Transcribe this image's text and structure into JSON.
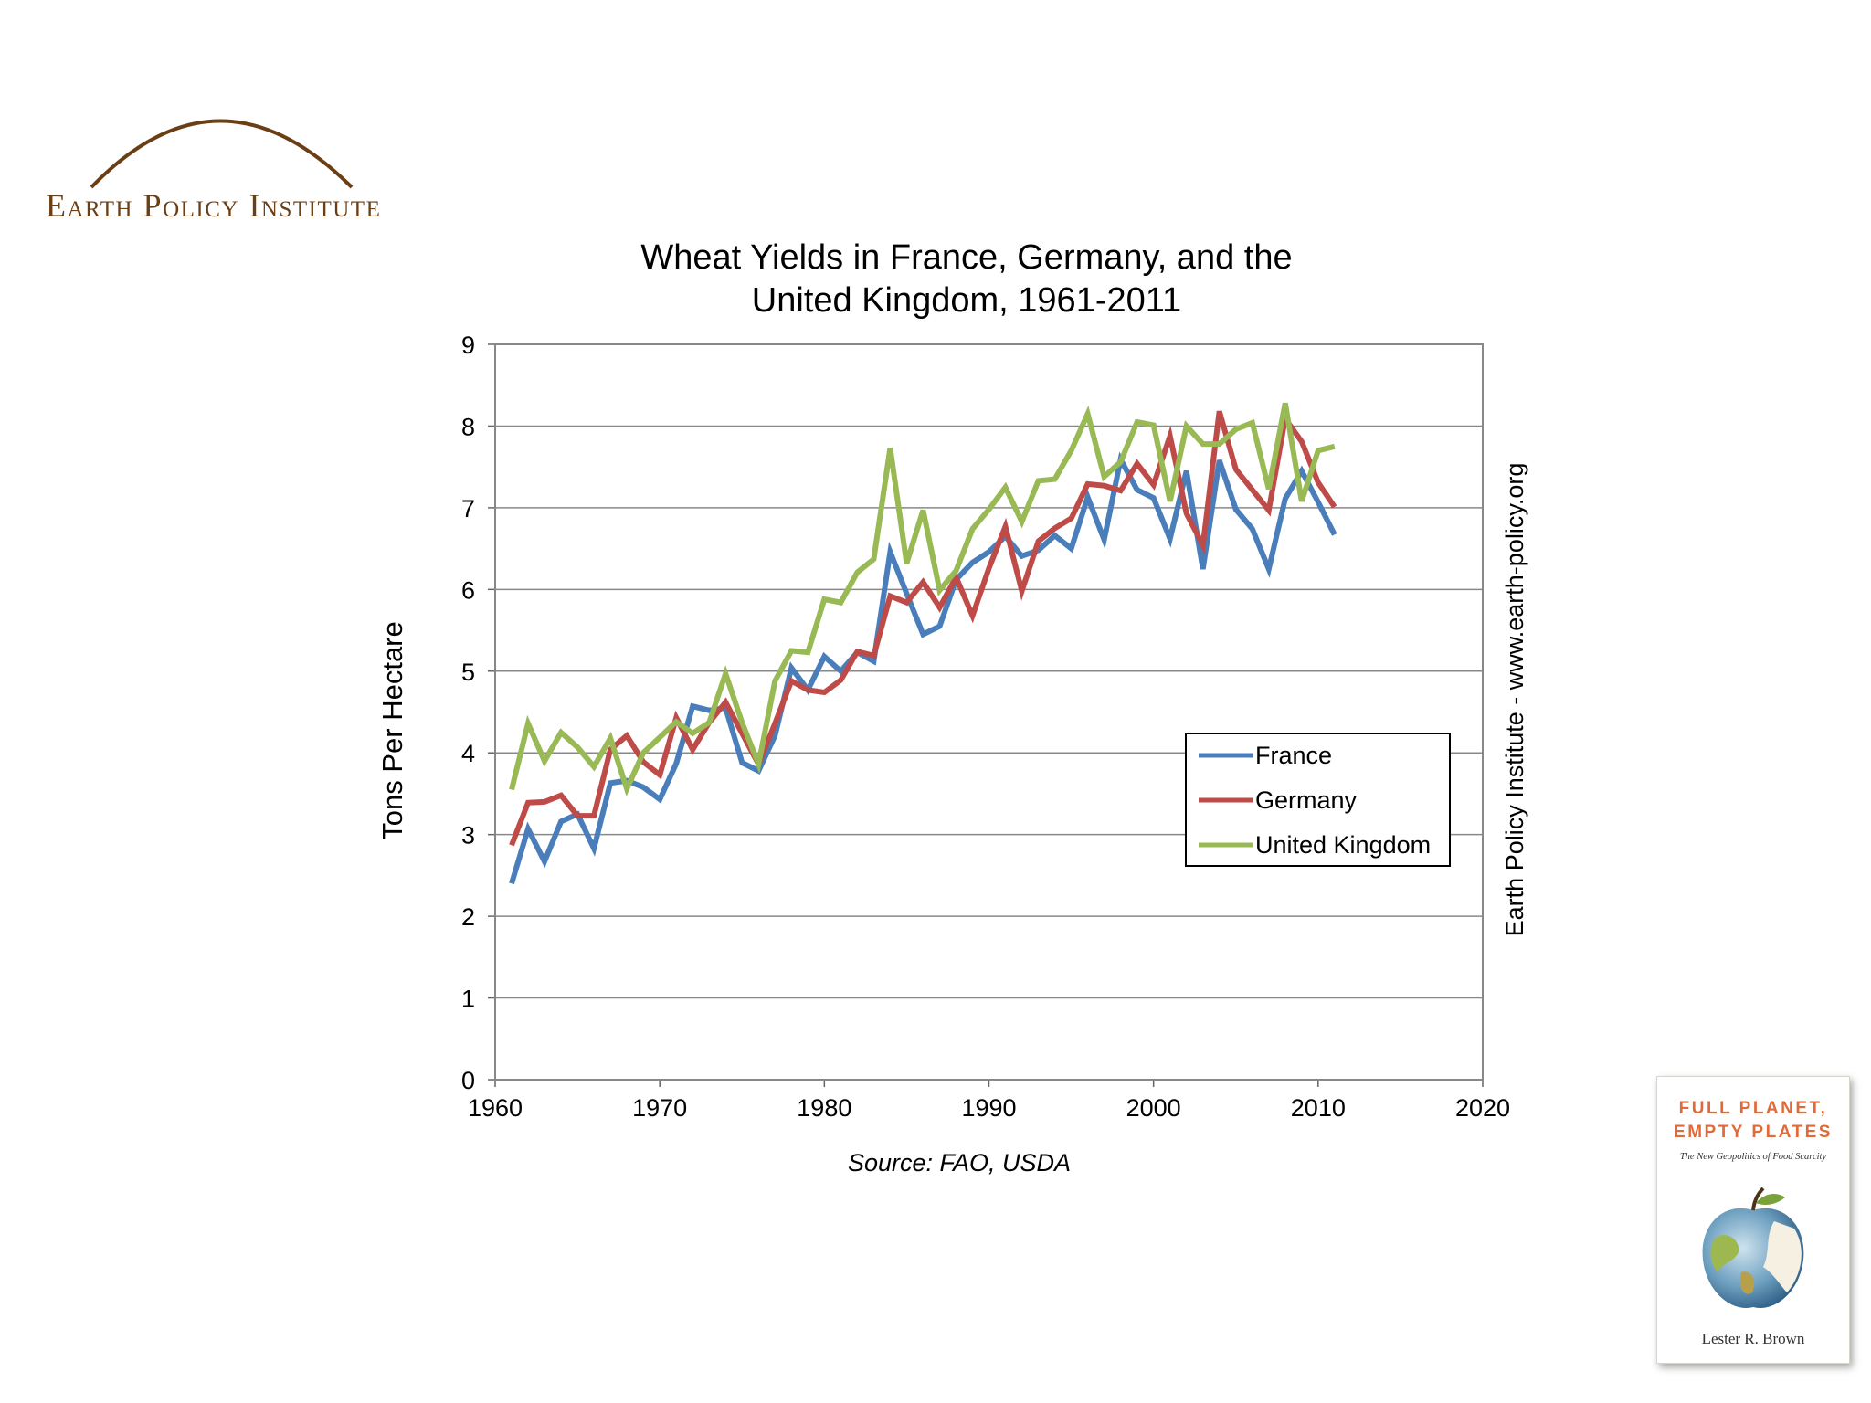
{
  "logo": {
    "text": "Earth Policy Institute"
  },
  "side_credit": "Earth Policy Institute - www.earth-policy.org",
  "book": {
    "title_line1": "FULL PLANET,",
    "title_line2": "EMPTY PLATES",
    "subtitle": "The New Geopolitics of Food Scarcity",
    "author": "Lester R. Brown"
  },
  "colors": {
    "france": "#4a7ebb",
    "germany": "#be4b48",
    "uk": "#98b954",
    "logo": "#6b3f16",
    "grid": "#888888"
  },
  "chart_data": {
    "type": "line",
    "title_line1": "Wheat Yields in France, Germany, and the",
    "title_line2": "United Kingdom, 1961-2011",
    "ylabel": "Tons Per Hectare",
    "source": "Source: FAO, USDA",
    "xlim": [
      1960,
      2020
    ],
    "ylim": [
      0,
      9
    ],
    "xticks": [
      1960,
      1970,
      1980,
      1990,
      2000,
      2010,
      2020
    ],
    "yticks": [
      0,
      1,
      2,
      3,
      4,
      5,
      6,
      7,
      8,
      9
    ],
    "grid": "horizontal",
    "legend_position": "right-center",
    "x": [
      1961,
      1962,
      1963,
      1964,
      1965,
      1966,
      1967,
      1968,
      1969,
      1970,
      1971,
      1972,
      1973,
      1974,
      1975,
      1976,
      1977,
      1978,
      1979,
      1980,
      1981,
      1982,
      1983,
      1984,
      1985,
      1986,
      1987,
      1988,
      1989,
      1990,
      1991,
      1992,
      1993,
      1994,
      1995,
      1996,
      1997,
      1998,
      1999,
      2000,
      2001,
      2002,
      2003,
      2004,
      2005,
      2006,
      2007,
      2008,
      2009,
      2010,
      2011
    ],
    "series": [
      {
        "name": "France",
        "color": "#4a7ebb",
        "values": [
          2.4,
          3.07,
          2.67,
          3.16,
          3.25,
          2.83,
          3.63,
          3.66,
          3.58,
          3.43,
          3.87,
          4.57,
          4.52,
          4.55,
          3.88,
          3.78,
          4.21,
          5.04,
          4.77,
          5.18,
          5.0,
          5.23,
          5.12,
          6.46,
          5.95,
          5.45,
          5.55,
          6.12,
          6.33,
          6.46,
          6.65,
          6.41,
          6.48,
          6.66,
          6.5,
          7.13,
          6.61,
          7.59,
          7.22,
          7.12,
          6.62,
          7.45,
          6.25,
          7.58,
          6.98,
          6.74,
          6.25,
          7.11,
          7.45,
          7.07,
          6.67
        ]
      },
      {
        "name": "Germany",
        "color": "#be4b48",
        "values": [
          2.87,
          3.39,
          3.4,
          3.48,
          3.23,
          3.23,
          4.04,
          4.21,
          3.89,
          3.73,
          4.43,
          4.04,
          4.37,
          4.62,
          4.24,
          3.86,
          4.36,
          4.88,
          4.77,
          4.74,
          4.89,
          5.24,
          5.19,
          5.92,
          5.84,
          6.09,
          5.78,
          6.15,
          5.68,
          6.26,
          6.77,
          5.98,
          6.59,
          6.75,
          6.87,
          7.29,
          7.27,
          7.21,
          7.54,
          7.28,
          7.88,
          6.93,
          6.54,
          8.18,
          7.47,
          7.22,
          6.97,
          8.09,
          7.81,
          7.31,
          7.01
        ]
      },
      {
        "name": "United Kingdom",
        "color": "#98b954",
        "values": [
          3.55,
          4.36,
          3.9,
          4.25,
          4.07,
          3.83,
          4.18,
          3.56,
          4.0,
          4.19,
          4.38,
          4.24,
          4.37,
          4.97,
          4.37,
          3.86,
          4.88,
          5.25,
          5.23,
          5.88,
          5.84,
          6.21,
          6.37,
          7.73,
          6.32,
          6.97,
          5.99,
          6.23,
          6.74,
          6.98,
          7.25,
          6.83,
          7.33,
          7.35,
          7.7,
          8.15,
          7.38,
          7.56,
          8.05,
          8.01,
          7.08,
          8.0,
          7.78,
          7.78,
          7.96,
          8.04,
          7.23,
          8.28,
          7.08,
          7.7,
          7.75
        ]
      }
    ]
  }
}
